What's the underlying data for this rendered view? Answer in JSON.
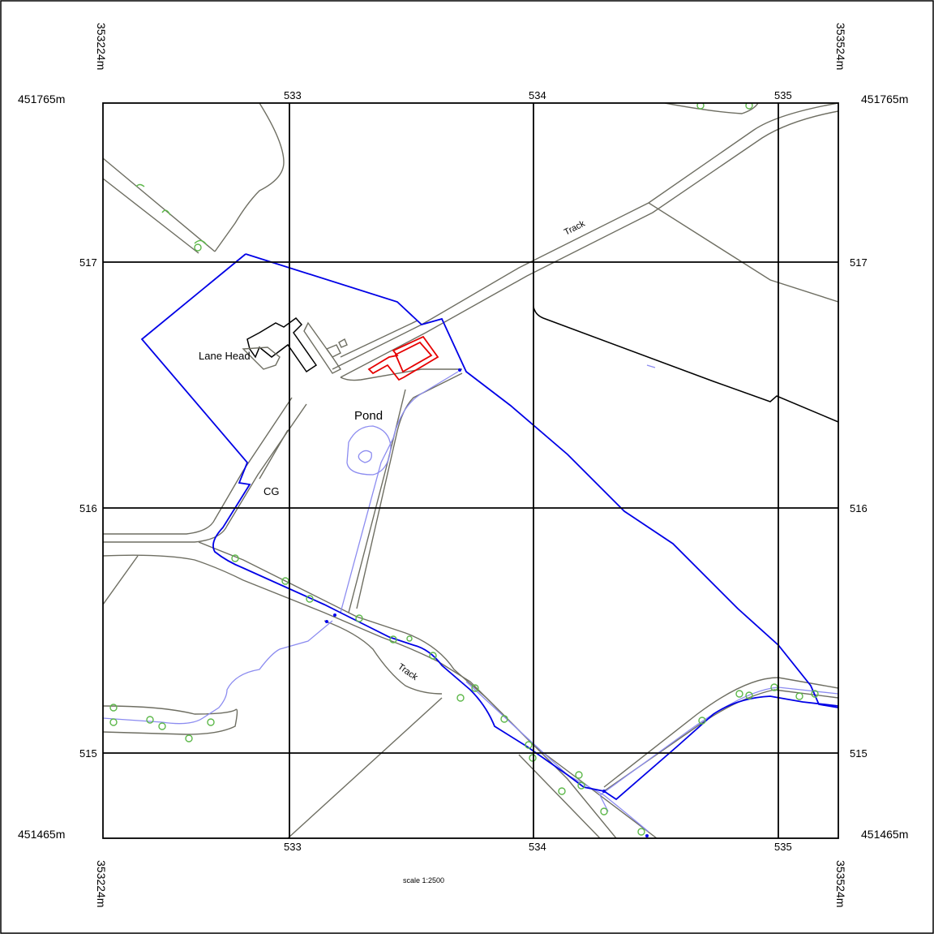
{
  "sheet": {
    "corners": {
      "northing_top": "451765m",
      "northing_bottom": "451465m",
      "easting_left": "353224m",
      "easting_right": "353524m"
    },
    "grid_x_labels": [
      "533",
      "534",
      "535"
    ],
    "grid_y_labels": [
      "517",
      "516",
      "515"
    ],
    "scale": "scale 1:2500"
  },
  "features": {
    "place_name": "Lane Head",
    "pond": "Pond",
    "cattle_grid": "CG",
    "track_north": "Track",
    "track_south": "Track"
  },
  "colors": {
    "boundary_blue": "#0000e6",
    "site_red": "#e60000",
    "water": "#8c8cf0",
    "roads": "#6e6e62",
    "trees": "#5db84a"
  }
}
